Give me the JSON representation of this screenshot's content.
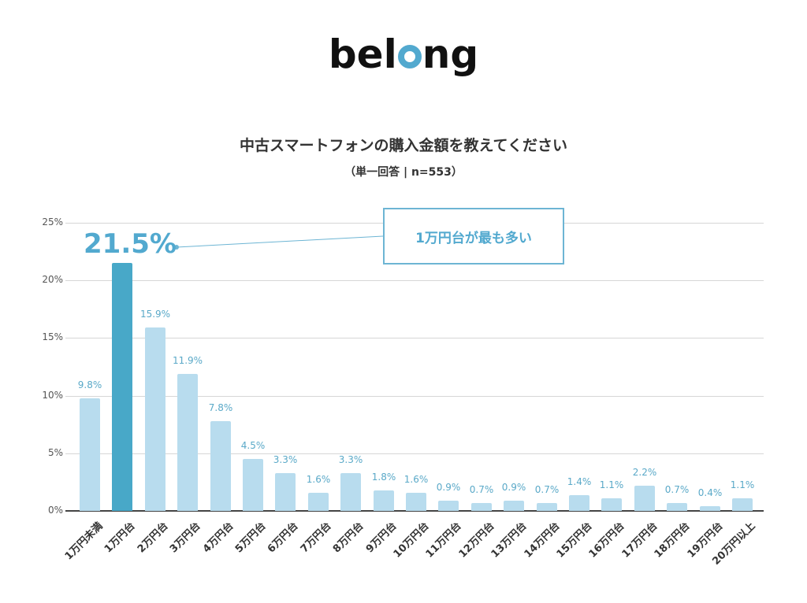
{
  "logo": {
    "prefix": "bel",
    "suffix": "ng",
    "accent_color": "#52a9cf"
  },
  "title": "中古スマートフォンの購入金額を教えてください",
  "subtitle": "（単一回答 | n=553）",
  "annotation": {
    "value_label": "21.5%",
    "callout_text": "1万円台が最も多い"
  },
  "colors": {
    "bar": "#b8dcee",
    "highlight_bar": "#48a8c8",
    "value_label": "#5aa9c8"
  },
  "chart_data": {
    "type": "bar",
    "title": "中古スマートフォンの購入金額を教えてください",
    "subtitle": "（単一回答 | n=553）",
    "xlabel": "",
    "ylabel": "",
    "ylim": [
      0,
      25
    ],
    "yticks": [
      "0%",
      "5%",
      "10%",
      "15%",
      "20%",
      "25%"
    ],
    "grid": true,
    "legend": null,
    "highlight_index": 1,
    "annotation": "1万円台が最も多い",
    "categories": [
      "1万円未満",
      "1万円台",
      "2万円台",
      "3万円台",
      "4万円台",
      "5万円台",
      "6万円台",
      "7万円台",
      "8万円台",
      "9万円台",
      "10万円台",
      "11万円台",
      "12万円台",
      "13万円台",
      "14万円台",
      "15万円台",
      "16万円台",
      "17万円台",
      "18万円台",
      "19万円台",
      "20万円以上"
    ],
    "values": [
      9.8,
      21.5,
      15.9,
      11.9,
      7.8,
      4.5,
      3.3,
      1.6,
      3.3,
      1.8,
      1.6,
      0.9,
      0.7,
      0.9,
      0.7,
      1.4,
      1.1,
      2.2,
      0.7,
      0.4,
      1.1
    ],
    "value_labels": [
      "9.8%",
      "",
      "15.9%",
      "11.9%",
      "7.8%",
      "4.5%",
      "3.3%",
      "1.6%",
      "3.3%",
      "1.8%",
      "1.6%",
      "0.9%",
      "0.7%",
      "0.9%",
      "0.7%",
      "1.4%",
      "1.1%",
      "2.2%",
      "0.7%",
      "0.4%",
      "1.1%"
    ]
  }
}
